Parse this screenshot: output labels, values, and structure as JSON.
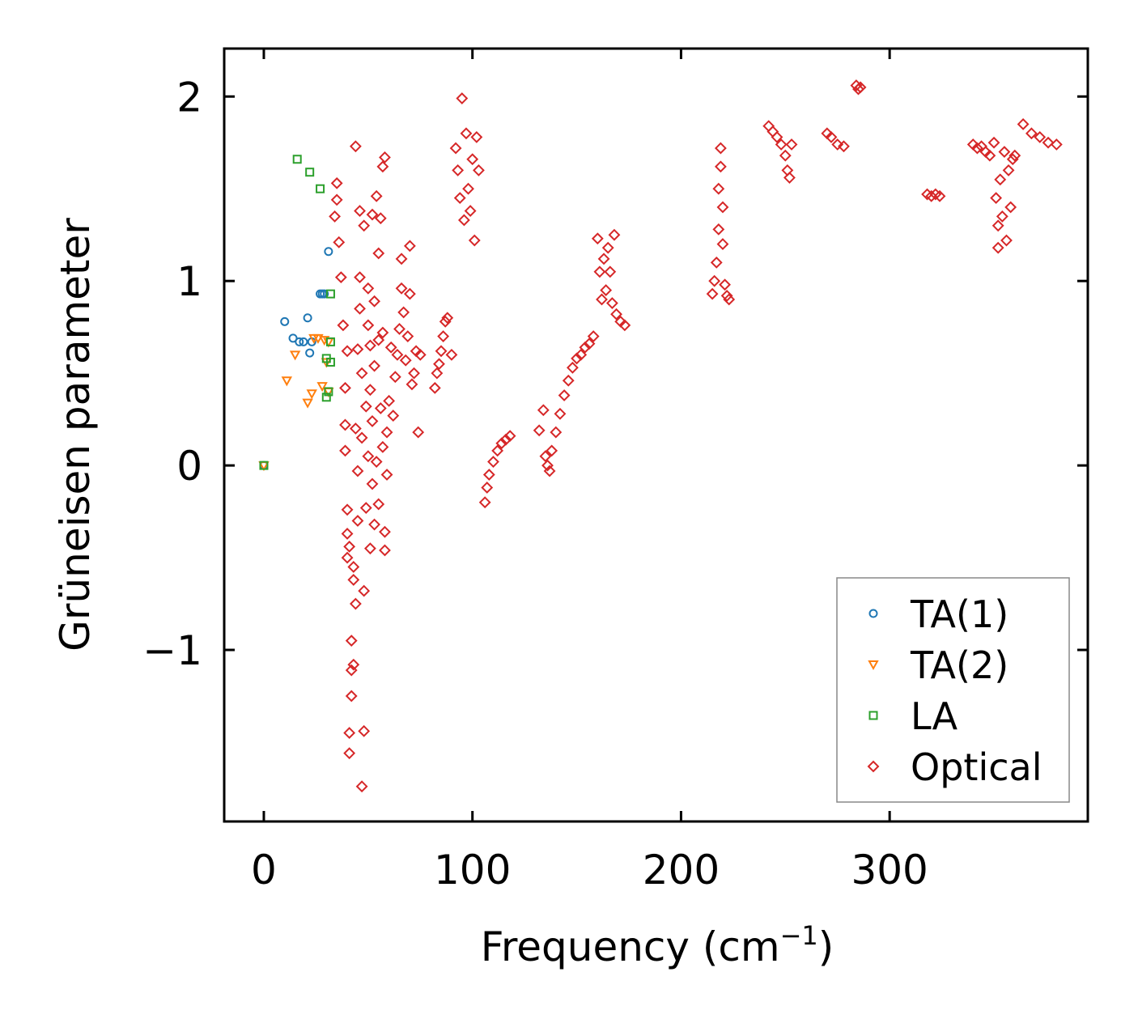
{
  "chart_data": {
    "type": "scatter",
    "title": "",
    "xlabel": "Frequency (cm",
    "xlabel_sup": "−1",
    "xlabel_close": ")",
    "ylabel": "Grüneisen parameter",
    "xlim": [
      -19,
      395
    ],
    "ylim": [
      -1.93,
      2.26
    ],
    "xticks": [
      0,
      100,
      200,
      300
    ],
    "xtick_labels": [
      "0",
      "100",
      "200",
      "300"
    ],
    "yticks": [
      -1,
      0,
      1,
      2
    ],
    "ytick_labels": [
      "−1",
      "0",
      "1",
      "2"
    ],
    "legend_position": "lower-right",
    "series": [
      {
        "name": "TA(1)",
        "marker": "circle",
        "color": "#1f77b4",
        "points": [
          [
            0,
            0
          ],
          [
            10,
            0.78
          ],
          [
            14,
            0.69
          ],
          [
            17,
            0.67
          ],
          [
            19,
            0.67
          ],
          [
            21,
            0.8
          ],
          [
            22,
            0.61
          ],
          [
            23,
            0.67
          ],
          [
            27,
            0.93
          ],
          [
            28,
            0.93
          ],
          [
            29,
            0.93
          ],
          [
            31,
            1.16
          ]
        ]
      },
      {
        "name": "TA(2)",
        "marker": "triangle-down",
        "color": "#ff7f0e",
        "points": [
          [
            0,
            0
          ],
          [
            11,
            0.46
          ],
          [
            15,
            0.6
          ],
          [
            21,
            0.34
          ],
          [
            23,
            0.39
          ],
          [
            24,
            0.69
          ],
          [
            26,
            0.69
          ],
          [
            28,
            0.43
          ],
          [
            29,
            0.68
          ],
          [
            30,
            0.56
          ],
          [
            31,
            0.67
          ],
          [
            31,
            0.4
          ]
        ]
      },
      {
        "name": "LA",
        "marker": "square",
        "color": "#2ca02c",
        "points": [
          [
            0,
            0
          ],
          [
            16,
            1.66
          ],
          [
            22,
            1.59
          ],
          [
            27,
            1.5
          ],
          [
            30,
            0.58
          ],
          [
            30,
            0.37
          ],
          [
            31,
            0.4
          ],
          [
            32,
            0.56
          ],
          [
            32,
            0.93
          ],
          [
            32,
            0.67
          ]
        ]
      },
      {
        "name": "Optical",
        "marker": "diamond",
        "color": "#d62728",
        "points": [
          [
            34,
            1.35
          ],
          [
            35,
            1.53
          ],
          [
            35,
            1.44
          ],
          [
            36,
            1.21
          ],
          [
            37,
            1.02
          ],
          [
            38,
            0.76
          ],
          [
            39,
            0.42
          ],
          [
            39,
            0.08
          ],
          [
            39,
            0.22
          ],
          [
            40,
            0.62
          ],
          [
            40,
            -0.24
          ],
          [
            40,
            -0.37
          ],
          [
            40,
            -0.5
          ],
          [
            41,
            -0.44
          ],
          [
            41,
            -1.45
          ],
          [
            41,
            -1.56
          ],
          [
            42,
            -0.95
          ],
          [
            42,
            -1.11
          ],
          [
            42,
            -1.25
          ],
          [
            43,
            -1.08
          ],
          [
            43,
            -0.62
          ],
          [
            43,
            -0.55
          ],
          [
            44,
            1.73
          ],
          [
            44,
            -0.75
          ],
          [
            44,
            0.2
          ],
          [
            45,
            0.63
          ],
          [
            45,
            -0.03
          ],
          [
            45,
            -0.3
          ],
          [
            46,
            1.38
          ],
          [
            46,
            1.02
          ],
          [
            46,
            0.85
          ],
          [
            47,
            0.5
          ],
          [
            47,
            0.15
          ],
          [
            47,
            -1.74
          ],
          [
            48,
            -1.44
          ],
          [
            48,
            1.3
          ],
          [
            48,
            -0.68
          ],
          [
            49,
            0.32
          ],
          [
            49,
            -0.23
          ],
          [
            50,
            0.96
          ],
          [
            50,
            0.76
          ],
          [
            50,
            0.05
          ],
          [
            51,
            0.65
          ],
          [
            51,
            0.41
          ],
          [
            51,
            -0.45
          ],
          [
            52,
            1.36
          ],
          [
            52,
            0.24
          ],
          [
            52,
            -0.1
          ],
          [
            53,
            0.54
          ],
          [
            53,
            0.89
          ],
          [
            53,
            -0.32
          ],
          [
            54,
            1.46
          ],
          [
            54,
            0.02
          ],
          [
            55,
            0.68
          ],
          [
            55,
            1.15
          ],
          [
            55,
            -0.21
          ],
          [
            56,
            1.34
          ],
          [
            56,
            0.31
          ],
          [
            57,
            1.62
          ],
          [
            57,
            0.72
          ],
          [
            57,
            0.1
          ],
          [
            58,
            1.67
          ],
          [
            58,
            -0.36
          ],
          [
            58,
            -0.46
          ],
          [
            59,
            0.18
          ],
          [
            59,
            -0.05
          ],
          [
            60,
            0.35
          ],
          [
            61,
            0.64
          ],
          [
            62,
            0.27
          ],
          [
            63,
            0.48
          ],
          [
            64,
            0.6
          ],
          [
            65,
            0.74
          ],
          [
            66,
            0.96
          ],
          [
            66,
            1.12
          ],
          [
            67,
            0.83
          ],
          [
            68,
            0.57
          ],
          [
            69,
            0.7
          ],
          [
            70,
            1.19
          ],
          [
            70,
            0.93
          ],
          [
            71,
            0.44
          ],
          [
            72,
            0.5
          ],
          [
            73,
            0.62
          ],
          [
            74,
            0.18
          ],
          [
            75,
            0.6
          ],
          [
            82,
            0.42
          ],
          [
            83,
            0.5
          ],
          [
            84,
            0.55
          ],
          [
            85,
            0.62
          ],
          [
            86,
            0.7
          ],
          [
            87,
            0.78
          ],
          [
            88,
            0.8
          ],
          [
            90,
            0.6
          ],
          [
            92,
            1.72
          ],
          [
            93,
            1.6
          ],
          [
            94,
            1.45
          ],
          [
            95,
            1.99
          ],
          [
            96,
            1.33
          ],
          [
            97,
            1.8
          ],
          [
            98,
            1.5
          ],
          [
            99,
            1.38
          ],
          [
            100,
            1.66
          ],
          [
            101,
            1.22
          ],
          [
            102,
            1.78
          ],
          [
            103,
            1.6
          ],
          [
            106,
            -0.2
          ],
          [
            107,
            -0.12
          ],
          [
            108,
            -0.05
          ],
          [
            110,
            0.02
          ],
          [
            112,
            0.08
          ],
          [
            114,
            0.12
          ],
          [
            116,
            0.14
          ],
          [
            118,
            0.16
          ],
          [
            132,
            0.19
          ],
          [
            134,
            0.3
          ],
          [
            135,
            0.05
          ],
          [
            136,
            0.0
          ],
          [
            137,
            -0.03
          ],
          [
            138,
            0.08
          ],
          [
            140,
            0.18
          ],
          [
            142,
            0.28
          ],
          [
            144,
            0.38
          ],
          [
            146,
            0.46
          ],
          [
            148,
            0.53
          ],
          [
            150,
            0.58
          ],
          [
            152,
            0.6
          ],
          [
            154,
            0.64
          ],
          [
            156,
            0.66
          ],
          [
            158,
            0.7
          ],
          [
            160,
            1.23
          ],
          [
            161,
            1.05
          ],
          [
            162,
            0.9
          ],
          [
            163,
            1.12
          ],
          [
            164,
            0.95
          ],
          [
            165,
            1.18
          ],
          [
            166,
            1.05
          ],
          [
            167,
            0.88
          ],
          [
            168,
            1.25
          ],
          [
            169,
            0.82
          ],
          [
            171,
            0.78
          ],
          [
            173,
            0.76
          ],
          [
            215,
            0.93
          ],
          [
            216,
            1.0
          ],
          [
            217,
            1.1
          ],
          [
            218,
            1.28
          ],
          [
            218,
            1.5
          ],
          [
            219,
            1.72
          ],
          [
            219,
            1.62
          ],
          [
            220,
            1.4
          ],
          [
            220,
            1.2
          ],
          [
            221,
            0.98
          ],
          [
            222,
            0.92
          ],
          [
            223,
            0.9
          ],
          [
            242,
            1.84
          ],
          [
            244,
            1.81
          ],
          [
            246,
            1.78
          ],
          [
            248,
            1.74
          ],
          [
            250,
            1.68
          ],
          [
            251,
            1.6
          ],
          [
            252,
            1.56
          ],
          [
            253,
            1.74
          ],
          [
            270,
            1.8
          ],
          [
            272,
            1.78
          ],
          [
            275,
            1.74
          ],
          [
            278,
            1.73
          ],
          [
            284,
            2.06
          ],
          [
            285,
            2.04
          ],
          [
            286,
            2.05
          ],
          [
            318,
            1.47
          ],
          [
            320,
            1.46
          ],
          [
            322,
            1.47
          ],
          [
            324,
            1.46
          ],
          [
            340,
            1.74
          ],
          [
            342,
            1.72
          ],
          [
            344,
            1.73
          ],
          [
            346,
            1.7
          ],
          [
            348,
            1.68
          ],
          [
            350,
            1.75
          ],
          [
            351,
            1.45
          ],
          [
            352,
            1.3
          ],
          [
            352,
            1.18
          ],
          [
            353,
            1.55
          ],
          [
            354,
            1.35
          ],
          [
            355,
            1.7
          ],
          [
            356,
            1.22
          ],
          [
            357,
            1.6
          ],
          [
            358,
            1.4
          ],
          [
            359,
            1.66
          ],
          [
            360,
            1.68
          ],
          [
            364,
            1.85
          ],
          [
            368,
            1.8
          ],
          [
            372,
            1.78
          ],
          [
            376,
            1.75
          ],
          [
            380,
            1.74
          ]
        ]
      }
    ]
  }
}
